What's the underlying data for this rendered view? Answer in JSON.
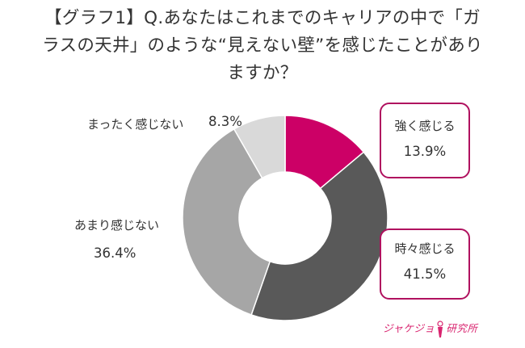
{
  "title": {
    "line1": "【グラフ1】Q.あなたはこれまでのキャリアの中で「ガ",
    "line2": "ラスの天井」のような“見えない壁”を感じたことがあり",
    "line3": "ますか？"
  },
  "chart_data": {
    "type": "pie",
    "subtype": "donut",
    "start_angle_deg": 0,
    "direction": "clockwise",
    "slices": [
      {
        "label": "強く感じる",
        "value": 13.9,
        "display": "13.9%",
        "color": "#cc0066",
        "highlight": true
      },
      {
        "label": "時々感じる",
        "value": 41.5,
        "display": "41.5%",
        "color": "#595959",
        "highlight": true
      },
      {
        "label": "あまり感じない",
        "value": 36.4,
        "display": "36.4%",
        "color": "#a6a6a6",
        "highlight": false
      },
      {
        "label": "まったく感じない",
        "value": 8.3,
        "display": "8.3%",
        "color": "#d9d9d9",
        "highlight": false
      }
    ]
  },
  "logo": {
    "text_left": "ジャケジョ",
    "text_right": "研究所"
  },
  "colors": {
    "accent": "#cc0066",
    "box_border": "#b0115f",
    "logo": "#d9246f"
  }
}
